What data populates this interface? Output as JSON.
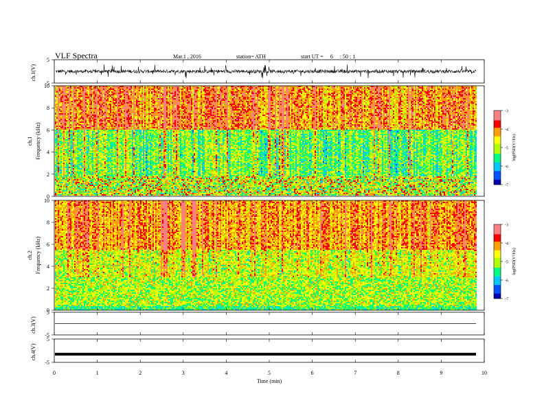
{
  "header": {
    "title": "VLF Spectra",
    "date": "Mar.1 , 2016",
    "station": "station= ATH",
    "start_label": "start UT =",
    "start_h": "6",
    "start_ms": ": 50 : 1"
  },
  "colors": {
    "waveform": "#000000",
    "colormap": [
      "#000000",
      "#0000b0",
      "#0050ff",
      "#00c8ff",
      "#00ff80",
      "#b0ff00",
      "#ffff00",
      "#ffa000",
      "#ff0000",
      "#ff8080",
      "#ffffff"
    ]
  },
  "chart_data": [
    {
      "type": "line",
      "panel": "ch1-waveform",
      "ylabel": "ch.1(V)",
      "ylim": [
        -5,
        5
      ],
      "yticks": [
        "5",
        "-5"
      ],
      "xlim": [
        0,
        10
      ],
      "description_values": "noisy signal around 0 V with spikes to about ±3 V"
    },
    {
      "type": "heatmap",
      "panel": "ch1-spectrogram",
      "ylabel": "ch.1\nFrequency (kHz)",
      "ylabel_line1": "ch.1",
      "ylabel_line2": "Frequency (kHz)",
      "ylim": [
        0,
        10
      ],
      "yticks": [
        "0",
        "2",
        "4",
        "6",
        "8",
        "10"
      ],
      "colorbar": {
        "label": "log(PSD(V²/Hz)",
        "min": -7,
        "max": -3,
        "ticks": [
          "-3",
          "-4",
          "-5",
          "-6",
          "-7"
        ]
      }
    },
    {
      "type": "heatmap",
      "panel": "ch2-spectrogram",
      "ylabel_line1": "ch.2",
      "ylabel_line2": "Frequency (kHz)",
      "ylim": [
        0,
        10
      ],
      "yticks": [
        "0",
        "2",
        "4",
        "6",
        "8",
        "10"
      ],
      "colorbar": {
        "label": "log(PSD(V²/Hz)",
        "min": -7,
        "max": -3,
        "ticks": [
          "-3",
          "-4",
          "-5",
          "-6",
          "-7"
        ]
      }
    },
    {
      "type": "line",
      "panel": "ch3-waveform",
      "ylabel": "ch.3(V)",
      "ylim": [
        -5,
        5
      ],
      "yticks": [
        "5",
        "-5"
      ],
      "values_note": "flat at 0 V"
    },
    {
      "type": "line",
      "panel": "ch4-waveform",
      "ylabel": "ch.4(V)",
      "ylim": [
        -5,
        5
      ],
      "yticks": [
        "5",
        "-5"
      ],
      "value": -1.5
    },
    {
      "type": "axis",
      "panel": "time-axis",
      "xlabel": "Time (min)",
      "xlim": [
        0,
        10
      ],
      "xticks": [
        "0",
        "1",
        "2",
        "3",
        "4",
        "5",
        "6",
        "7",
        "8",
        "9",
        "10"
      ]
    }
  ]
}
